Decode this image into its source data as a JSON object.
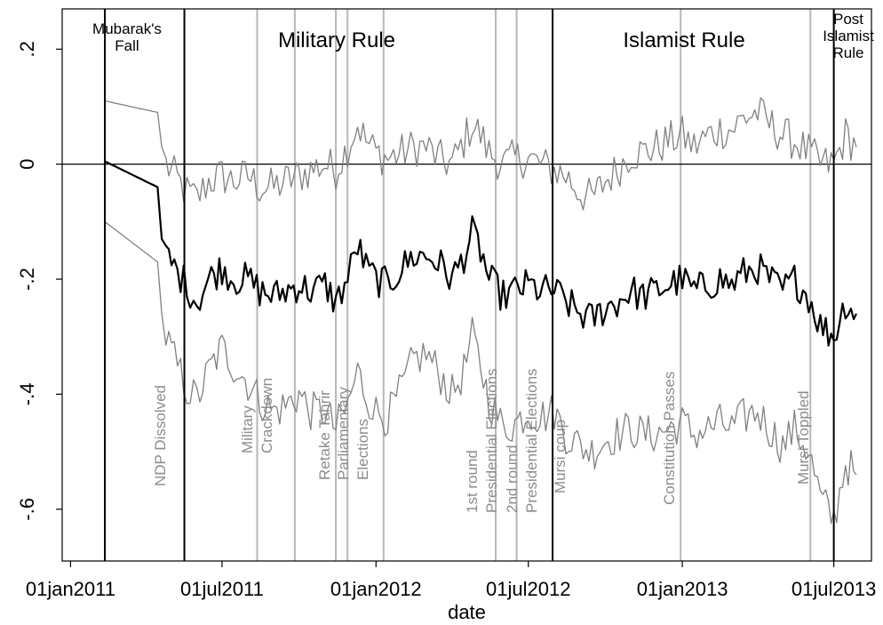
{
  "chart_data": {
    "type": "line",
    "title": "",
    "xlabel": "date",
    "ylabel": "",
    "x_range": [
      "2010-12-22",
      "2013-08-15"
    ],
    "ylim": [
      -0.69,
      0.27
    ],
    "grid": false,
    "legend": "none",
    "x_ticks": [
      {
        "date": "2011-01-01",
        "label": "01jan2011"
      },
      {
        "date": "2011-07-01",
        "label": "01jul2011"
      },
      {
        "date": "2012-01-01",
        "label": "01jan2012"
      },
      {
        "date": "2012-07-01",
        "label": "01jul2012"
      },
      {
        "date": "2013-01-01",
        "label": "01jan2013"
      },
      {
        "date": "2013-07-01",
        "label": "01jul2013"
      }
    ],
    "y_ticks": [
      {
        "value": 0.2,
        "label": ".2"
      },
      {
        "value": 0,
        "label": "0"
      },
      {
        "value": -0.2,
        "label": "-.2"
      },
      {
        "value": -0.4,
        "label": "-.4"
      },
      {
        "value": -0.6,
        "label": "-.6"
      }
    ],
    "zero_line": 0,
    "colors": {
      "estimate": "#000000",
      "bounds": "#808080",
      "event_line": "#b8b8b8",
      "event_text": "#8c8c8c",
      "period_line": "#000000"
    },
    "periods": [
      {
        "name": "Mubarak's Fall",
        "lines": [
          "Mubarak's",
          "Fall"
        ],
        "start": "2011-02-11",
        "end": "2011-05-17"
      },
      {
        "name": "Military Rule",
        "lines": [
          "Military Rule"
        ],
        "start": "2011-05-17",
        "end": "2012-07-30"
      },
      {
        "name": "Islamist Rule",
        "lines": [
          "Islamist Rule"
        ],
        "start": "2012-07-30",
        "end": "2013-07-01"
      },
      {
        "name": "Post Islamist Rule",
        "lines": [
          "Post",
          "Islamist",
          "Rule"
        ],
        "start": "2013-07-01",
        "end": "2013-08-15"
      }
    ],
    "events": [
      {
        "date": "2011-05-17",
        "label": [
          "NDP Dissolved"
        ]
      },
      {
        "date": "2011-08-12",
        "label": [
          "Military",
          "Crackdown"
        ]
      },
      {
        "date": "2011-09-26",
        "label": [
          "Parliamentary",
          "Elections"
        ]
      },
      {
        "date": "2011-11-14",
        "label": [
          "Retake Tahrir"
        ]
      },
      {
        "date": "2011-11-28",
        "label": [
          ""
        ]
      },
      {
        "date": "2012-01-10",
        "label": [
          ""
        ]
      },
      {
        "date": "2012-05-23",
        "label": [
          "1st round",
          "Presidential Elections"
        ]
      },
      {
        "date": "2012-06-17",
        "label": [
          "2nd round",
          "Presidential Elections"
        ]
      },
      {
        "date": "2012-07-30",
        "label": [
          "Mursi coup"
        ]
      },
      {
        "date": "2012-12-30",
        "label": [
          "Constitution Passes"
        ]
      },
      {
        "date": "2013-06-03",
        "label": [
          "Mursi Toppled"
        ]
      }
    ],
    "series": [
      {
        "role": "estimate",
        "points": [
          [
            "2011-02-11",
            0.005
          ],
          [
            "2011-04-15",
            -0.04
          ],
          [
            "2011-04-20",
            -0.13
          ],
          [
            "2011-04-25",
            -0.16
          ],
          [
            "2011-05-05",
            -0.18
          ],
          [
            "2011-05-20",
            -0.21
          ],
          [
            "2011-06-01",
            -0.24
          ],
          [
            "2011-06-15",
            -0.2
          ],
          [
            "2011-07-01",
            -0.18
          ],
          [
            "2011-07-15",
            -0.2
          ],
          [
            "2011-08-01",
            -0.2
          ],
          [
            "2011-08-15",
            -0.22
          ],
          [
            "2011-09-01",
            -0.23
          ],
          [
            "2011-09-15",
            -0.22
          ],
          [
            "2011-10-01",
            -0.21
          ],
          [
            "2011-10-15",
            -0.22
          ],
          [
            "2011-11-01",
            -0.21
          ],
          [
            "2011-11-14",
            -0.24
          ],
          [
            "2011-11-28",
            -0.2
          ],
          [
            "2011-12-10",
            -0.14
          ],
          [
            "2011-12-20",
            -0.18
          ],
          [
            "2012-01-01",
            -0.2
          ],
          [
            "2012-01-15",
            -0.21
          ],
          [
            "2012-02-01",
            -0.18
          ],
          [
            "2012-02-15",
            -0.16
          ],
          [
            "2012-03-01",
            -0.16
          ],
          [
            "2012-03-15",
            -0.17
          ],
          [
            "2012-04-01",
            -0.2
          ],
          [
            "2012-04-15",
            -0.16
          ],
          [
            "2012-04-25",
            -0.12
          ],
          [
            "2012-05-05",
            -0.15
          ],
          [
            "2012-05-15",
            -0.2
          ],
          [
            "2012-06-01",
            -0.23
          ],
          [
            "2012-06-15",
            -0.22
          ],
          [
            "2012-07-01",
            -0.21
          ],
          [
            "2012-07-15",
            -0.22
          ],
          [
            "2012-08-01",
            -0.22
          ],
          [
            "2012-08-15",
            -0.24
          ],
          [
            "2012-09-01",
            -0.26
          ],
          [
            "2012-09-15",
            -0.27
          ],
          [
            "2012-10-01",
            -0.25
          ],
          [
            "2012-10-15",
            -0.24
          ],
          [
            "2012-11-01",
            -0.22
          ],
          [
            "2012-11-15",
            -0.23
          ],
          [
            "2012-12-01",
            -0.22
          ],
          [
            "2012-12-15",
            -0.21
          ],
          [
            "2013-01-01",
            -0.2
          ],
          [
            "2013-01-15",
            -0.22
          ],
          [
            "2013-02-01",
            -0.21
          ],
          [
            "2013-02-15",
            -0.2
          ],
          [
            "2013-03-01",
            -0.21
          ],
          [
            "2013-03-15",
            -0.19
          ],
          [
            "2013-04-01",
            -0.18
          ],
          [
            "2013-04-15",
            -0.2
          ],
          [
            "2013-05-01",
            -0.22
          ],
          [
            "2013-05-15",
            -0.2
          ],
          [
            "2013-06-01",
            -0.23
          ],
          [
            "2013-06-15",
            -0.28
          ],
          [
            "2013-07-01",
            -0.3
          ],
          [
            "2013-07-15",
            -0.24
          ],
          [
            "2013-07-28",
            -0.26
          ]
        ]
      },
      {
        "role": "upper_bound",
        "points": [
          [
            "2011-02-11",
            0.11
          ],
          [
            "2011-04-15",
            0.09
          ],
          [
            "2011-04-20",
            0.03
          ],
          [
            "2011-04-25",
            0.0
          ],
          [
            "2011-05-05",
            -0.02
          ],
          [
            "2011-05-20",
            -0.05
          ],
          [
            "2011-06-01",
            -0.06
          ],
          [
            "2011-06-15",
            -0.03
          ],
          [
            "2011-07-01",
            -0.02
          ],
          [
            "2011-07-15",
            -0.03
          ],
          [
            "2011-08-01",
            -0.02
          ],
          [
            "2011-08-15",
            -0.04
          ],
          [
            "2011-09-01",
            -0.04
          ],
          [
            "2011-09-15",
            -0.03
          ],
          [
            "2011-10-01",
            -0.02
          ],
          [
            "2011-10-15",
            -0.01
          ],
          [
            "2011-11-01",
            0.0
          ],
          [
            "2011-11-14",
            -0.01
          ],
          [
            "2011-11-28",
            0.03
          ],
          [
            "2011-12-10",
            0.07
          ],
          [
            "2011-12-20",
            0.04
          ],
          [
            "2012-01-01",
            0.02
          ],
          [
            "2012-01-15",
            0.01
          ],
          [
            "2012-02-01",
            0.02
          ],
          [
            "2012-02-15",
            0.03
          ],
          [
            "2012-03-01",
            0.03
          ],
          [
            "2012-03-15",
            0.01
          ],
          [
            "2012-04-01",
            0.0
          ],
          [
            "2012-04-15",
            0.04
          ],
          [
            "2012-04-25",
            0.07
          ],
          [
            "2012-05-05",
            0.05
          ],
          [
            "2012-05-15",
            0.02
          ],
          [
            "2012-06-01",
            0.0
          ],
          [
            "2012-06-15",
            0.01
          ],
          [
            "2012-07-01",
            0.01
          ],
          [
            "2012-07-15",
            0.0
          ],
          [
            "2012-08-01",
            -0.01
          ],
          [
            "2012-08-15",
            -0.02
          ],
          [
            "2012-09-01",
            -0.05
          ],
          [
            "2012-09-15",
            -0.06
          ],
          [
            "2012-10-01",
            -0.03
          ],
          [
            "2012-10-15",
            -0.01
          ],
          [
            "2012-11-01",
            0.02
          ],
          [
            "2012-11-15",
            0.02
          ],
          [
            "2012-12-01",
            0.03
          ],
          [
            "2012-12-15",
            0.04
          ],
          [
            "2013-01-01",
            0.05
          ],
          [
            "2013-01-15",
            0.03
          ],
          [
            "2013-02-01",
            0.05
          ],
          [
            "2013-02-15",
            0.06
          ],
          [
            "2013-03-01",
            0.06
          ],
          [
            "2013-03-15",
            0.08
          ],
          [
            "2013-04-01",
            0.09
          ],
          [
            "2013-04-15",
            0.07
          ],
          [
            "2013-05-01",
            0.05
          ],
          [
            "2013-05-15",
            0.04
          ],
          [
            "2013-06-01",
            0.02
          ],
          [
            "2013-06-15",
            0.0
          ],
          [
            "2013-07-01",
            0.0
          ],
          [
            "2013-07-15",
            0.05
          ],
          [
            "2013-07-28",
            0.03
          ]
        ]
      },
      {
        "role": "lower_bound",
        "points": [
          [
            "2011-02-11",
            -0.1
          ],
          [
            "2011-04-15",
            -0.17
          ],
          [
            "2011-04-20",
            -0.26
          ],
          [
            "2011-04-25",
            -0.3
          ],
          [
            "2011-05-05",
            -0.34
          ],
          [
            "2011-05-20",
            -0.39
          ],
          [
            "2011-06-01",
            -0.41
          ],
          [
            "2011-06-15",
            -0.36
          ],
          [
            "2011-07-01",
            -0.32
          ],
          [
            "2011-07-15",
            -0.35
          ],
          [
            "2011-08-01",
            -0.38
          ],
          [
            "2011-08-15",
            -0.41
          ],
          [
            "2011-09-01",
            -0.43
          ],
          [
            "2011-09-15",
            -0.42
          ],
          [
            "2011-10-01",
            -0.4
          ],
          [
            "2011-10-15",
            -0.43
          ],
          [
            "2011-11-01",
            -0.43
          ],
          [
            "2011-11-14",
            -0.46
          ],
          [
            "2011-11-28",
            -0.42
          ],
          [
            "2011-12-10",
            -0.36
          ],
          [
            "2011-12-20",
            -0.4
          ],
          [
            "2012-01-01",
            -0.43
          ],
          [
            "2012-01-15",
            -0.44
          ],
          [
            "2012-02-01",
            -0.39
          ],
          [
            "2012-02-15",
            -0.34
          ],
          [
            "2012-03-01",
            -0.33
          ],
          [
            "2012-03-15",
            -0.36
          ],
          [
            "2012-04-01",
            -0.4
          ],
          [
            "2012-04-15",
            -0.36
          ],
          [
            "2012-04-25",
            -0.3
          ],
          [
            "2012-05-05",
            -0.35
          ],
          [
            "2012-05-15",
            -0.41
          ],
          [
            "2012-06-01",
            -0.46
          ],
          [
            "2012-06-15",
            -0.45
          ],
          [
            "2012-07-01",
            -0.43
          ],
          [
            "2012-07-15",
            -0.44
          ],
          [
            "2012-08-01",
            -0.43
          ],
          [
            "2012-08-15",
            -0.47
          ],
          [
            "2012-09-01",
            -0.49
          ],
          [
            "2012-09-15",
            -0.5
          ],
          [
            "2012-10-01",
            -0.48
          ],
          [
            "2012-10-15",
            -0.47
          ],
          [
            "2012-11-01",
            -0.46
          ],
          [
            "2012-11-15",
            -0.47
          ],
          [
            "2012-12-01",
            -0.47
          ],
          [
            "2012-12-15",
            -0.46
          ],
          [
            "2013-01-01",
            -0.45
          ],
          [
            "2013-01-15",
            -0.47
          ],
          [
            "2013-02-01",
            -0.46
          ],
          [
            "2013-02-15",
            -0.45
          ],
          [
            "2013-03-01",
            -0.46
          ],
          [
            "2013-03-15",
            -0.44
          ],
          [
            "2013-04-01",
            -0.43
          ],
          [
            "2013-04-15",
            -0.46
          ],
          [
            "2013-05-01",
            -0.49
          ],
          [
            "2013-05-15",
            -0.46
          ],
          [
            "2013-06-01",
            -0.5
          ],
          [
            "2013-06-15",
            -0.58
          ],
          [
            "2013-07-01",
            -0.62
          ],
          [
            "2013-07-15",
            -0.52
          ],
          [
            "2013-07-28",
            -0.54
          ]
        ]
      }
    ]
  }
}
